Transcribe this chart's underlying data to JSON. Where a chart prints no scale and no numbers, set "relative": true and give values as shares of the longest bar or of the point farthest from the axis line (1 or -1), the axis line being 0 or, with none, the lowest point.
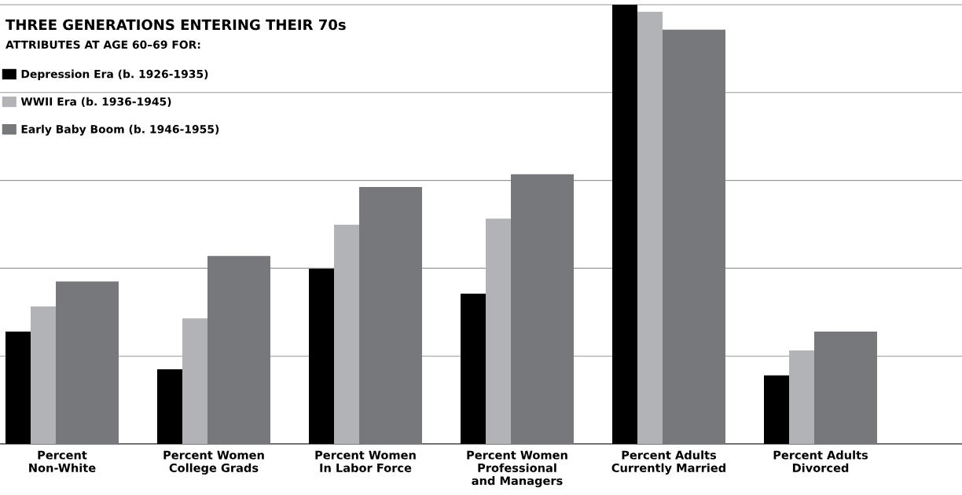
{
  "chart_data": {
    "type": "bar",
    "title": "THREE GENERATIONS ENTERING THEIR 70s",
    "subtitle": "ATTRIBUTES AT AGE 60–69 FOR:",
    "categories": [
      "Percent\nNon-White",
      "Percent Women\nCollege Grads",
      "Percent Women\nIn Labor Force",
      "Percent Women\nProfessional\nand Managers",
      "Percent Adults\nCurrently Married",
      "Percent Adults\nDivorced"
    ],
    "relative": true,
    "grid": "y",
    "legend": "top left",
    "series": [
      {
        "name": "Depression Era (b. 1926-1935)",
        "color": "#000000",
        "values": [
          0.256,
          0.17,
          0.399,
          0.342,
          1,
          0.156
        ]
      },
      {
        "name": "WWII Era (b. 1936-1945)",
        "color": "#b1b3b6",
        "values": [
          0.313,
          0.286,
          0.499,
          0.513,
          0.984,
          0.213
        ]
      },
      {
        "name": "Early Baby Boom (b. 1946-1955)",
        "color": "#77787b",
        "values": [
          0.37,
          0.428,
          0.585,
          0.614,
          0.943,
          0.256
        ]
      }
    ]
  }
}
